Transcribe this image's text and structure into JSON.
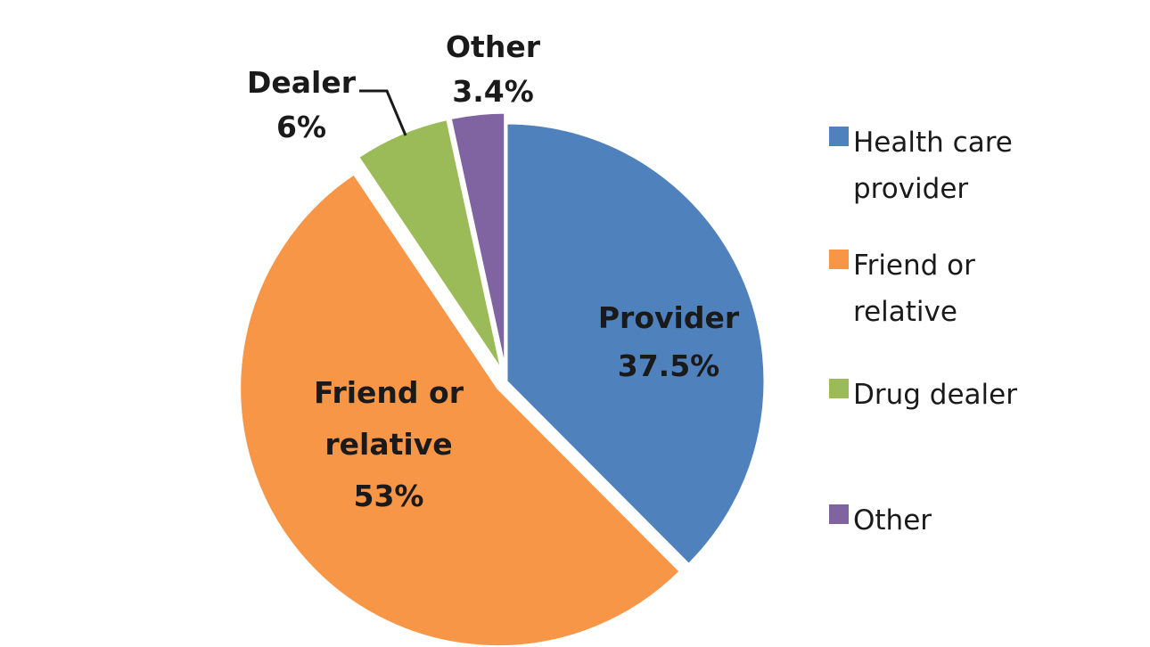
{
  "chart_data": {
    "type": "pie",
    "legend_position": "right",
    "slices": [
      {
        "legend": "Health care provider",
        "legend_lines": [
          "Health care",
          "provider"
        ],
        "label_lines": [
          "Provider",
          "37.5%"
        ],
        "value": 37.5,
        "color": "#4F81BD",
        "exploded": false
      },
      {
        "legend": "Friend or relative",
        "legend_lines": [
          "Friend or",
          "relative"
        ],
        "label_lines": [
          "Friend or",
          "relative",
          "53%"
        ],
        "value": 53,
        "color": "#F79646",
        "exploded": true
      },
      {
        "legend": "Drug dealer",
        "legend_lines": [
          "Drug dealer"
        ],
        "label_lines": [
          "Dealer",
          "6%"
        ],
        "value": 6,
        "color": "#9BBB59",
        "exploded": true
      },
      {
        "legend": "Other",
        "legend_lines": [
          "Other"
        ],
        "label_lines": [
          "Other",
          "3.4%"
        ],
        "value": 3.4,
        "color": "#8064A2",
        "exploded": true
      }
    ]
  }
}
